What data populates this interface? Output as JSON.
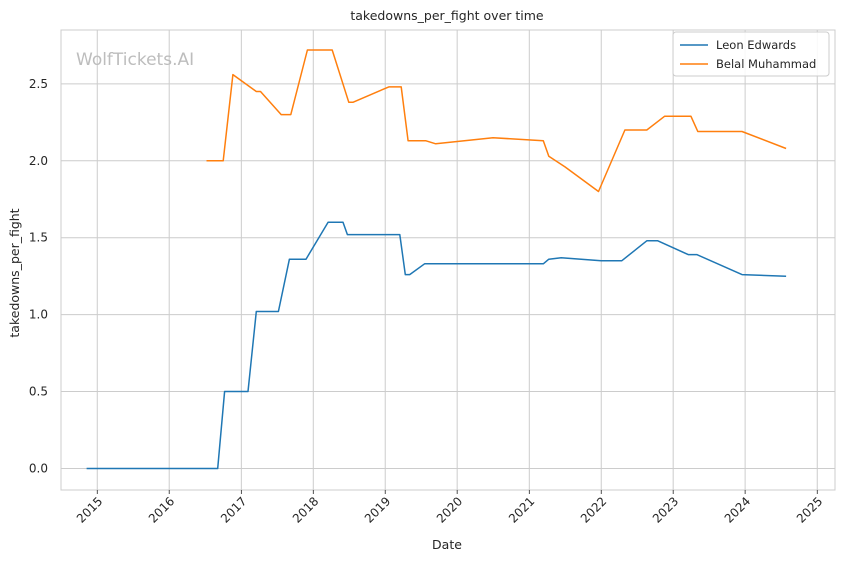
{
  "chart_data": {
    "type": "line",
    "title": "takedowns_per_fight over time",
    "xlabel": "Date",
    "ylabel": "takedowns_per_fight",
    "watermark": "WolfTickets.AI",
    "x_ticks": [
      "2015",
      "2016",
      "2017",
      "2018",
      "2019",
      "2020",
      "2021",
      "2022",
      "2023",
      "2024",
      "2025"
    ],
    "y_ticks": [
      "0.0",
      "0.5",
      "1.0",
      "1.5",
      "2.0",
      "2.5"
    ],
    "xlim": [
      "2014-07-01",
      "2025-04-01"
    ],
    "ylim": [
      -0.14,
      2.85
    ],
    "grid": true,
    "legend_position": "top-right",
    "colors": {
      "Leon Edwards": "#1f77b4",
      "Belal Muhammad": "#ff7f0e",
      "grid": "#cccccc",
      "axes": "#cccccc"
    },
    "series": [
      {
        "name": "Leon Edwards",
        "points": [
          [
            "2014-11-08",
            0.0
          ],
          [
            "2016-09-03",
            0.0
          ],
          [
            "2016-10-08",
            0.5
          ],
          [
            "2017-02-04",
            0.5
          ],
          [
            "2017-03-18",
            1.02
          ],
          [
            "2017-07-08",
            1.02
          ],
          [
            "2017-09-02",
            1.36
          ],
          [
            "2017-11-25",
            1.36
          ],
          [
            "2018-03-17",
            1.6
          ],
          [
            "2018-06-01",
            1.6
          ],
          [
            "2018-06-23",
            1.52
          ],
          [
            "2019-01-01",
            1.52
          ],
          [
            "2019-03-16",
            1.52
          ],
          [
            "2019-04-13",
            1.26
          ],
          [
            "2019-05-05",
            1.26
          ],
          [
            "2019-07-20",
            1.33
          ],
          [
            "2021-03-13",
            1.33
          ],
          [
            "2021-04-10",
            1.36
          ],
          [
            "2021-06-12",
            1.37
          ],
          [
            "2022-01-01",
            1.35
          ],
          [
            "2022-04-15",
            1.35
          ],
          [
            "2022-08-20",
            1.48
          ],
          [
            "2022-10-15",
            1.48
          ],
          [
            "2023-03-18",
            1.39
          ],
          [
            "2023-05-01",
            1.39
          ],
          [
            "2023-12-16",
            1.26
          ],
          [
            "2024-07-27",
            1.25
          ]
        ]
      },
      {
        "name": "Belal Muhammad",
        "points": [
          [
            "2016-07-08",
            2.0
          ],
          [
            "2016-10-01",
            2.0
          ],
          [
            "2016-11-19",
            2.56
          ],
          [
            "2017-03-18",
            2.45
          ],
          [
            "2017-04-08",
            2.45
          ],
          [
            "2017-07-22",
            2.3
          ],
          [
            "2017-09-09",
            2.3
          ],
          [
            "2017-12-02",
            2.72
          ],
          [
            "2018-04-07",
            2.72
          ],
          [
            "2018-06-30",
            2.38
          ],
          [
            "2018-07-21",
            2.38
          ],
          [
            "2019-01-19",
            2.48
          ],
          [
            "2019-03-23",
            2.48
          ],
          [
            "2019-04-27",
            2.13
          ],
          [
            "2019-07-27",
            2.13
          ],
          [
            "2019-09-14",
            2.11
          ],
          [
            "2020-07-01",
            2.15
          ],
          [
            "2021-03-13",
            2.13
          ],
          [
            "2021-04-10",
            2.03
          ],
          [
            "2021-07-01",
            1.96
          ],
          [
            "2021-12-18",
            1.8
          ],
          [
            "2022-05-01",
            2.2
          ],
          [
            "2022-08-20",
            2.2
          ],
          [
            "2022-11-19",
            2.29
          ],
          [
            "2023-04-01",
            2.29
          ],
          [
            "2023-05-06",
            2.19
          ],
          [
            "2023-12-16",
            2.19
          ],
          [
            "2024-07-27",
            2.08
          ]
        ]
      }
    ]
  }
}
